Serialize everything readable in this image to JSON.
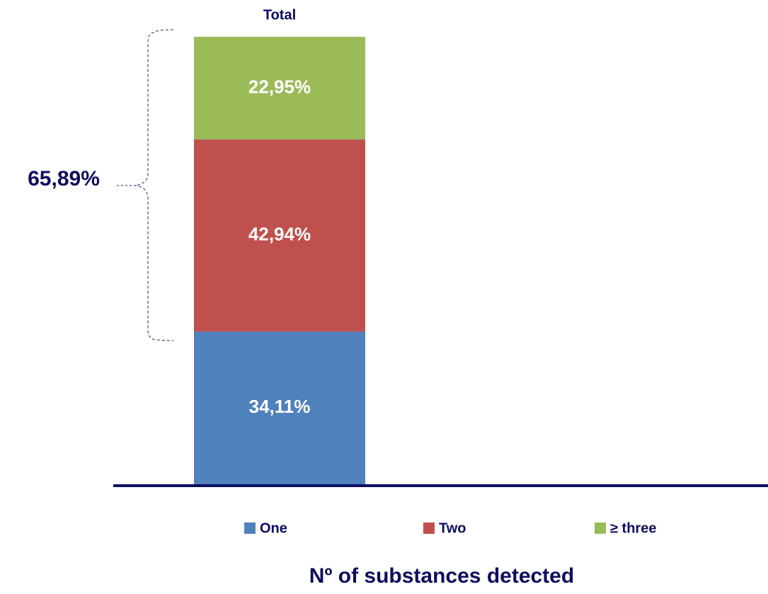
{
  "chart_data": {
    "type": "stacked-bar",
    "categories": [
      "Total"
    ],
    "series": [
      {
        "name": "One",
        "color": "#4f81bd",
        "values": [
          34.11
        ],
        "value_labels": [
          "34,11%"
        ]
      },
      {
        "name": "Two",
        "color": "#c0504d",
        "values": [
          42.94
        ],
        "value_labels": [
          "42,94%"
        ]
      },
      {
        "name": "≥ three",
        "color": "#9bbb59",
        "values": [
          22.95
        ],
        "value_labels": [
          "22,95%"
        ]
      }
    ],
    "ylim": [
      0,
      100
    ],
    "annotation": "65,89%",
    "x_axis_label": "Nº of substances detected",
    "legend": "bottom"
  }
}
